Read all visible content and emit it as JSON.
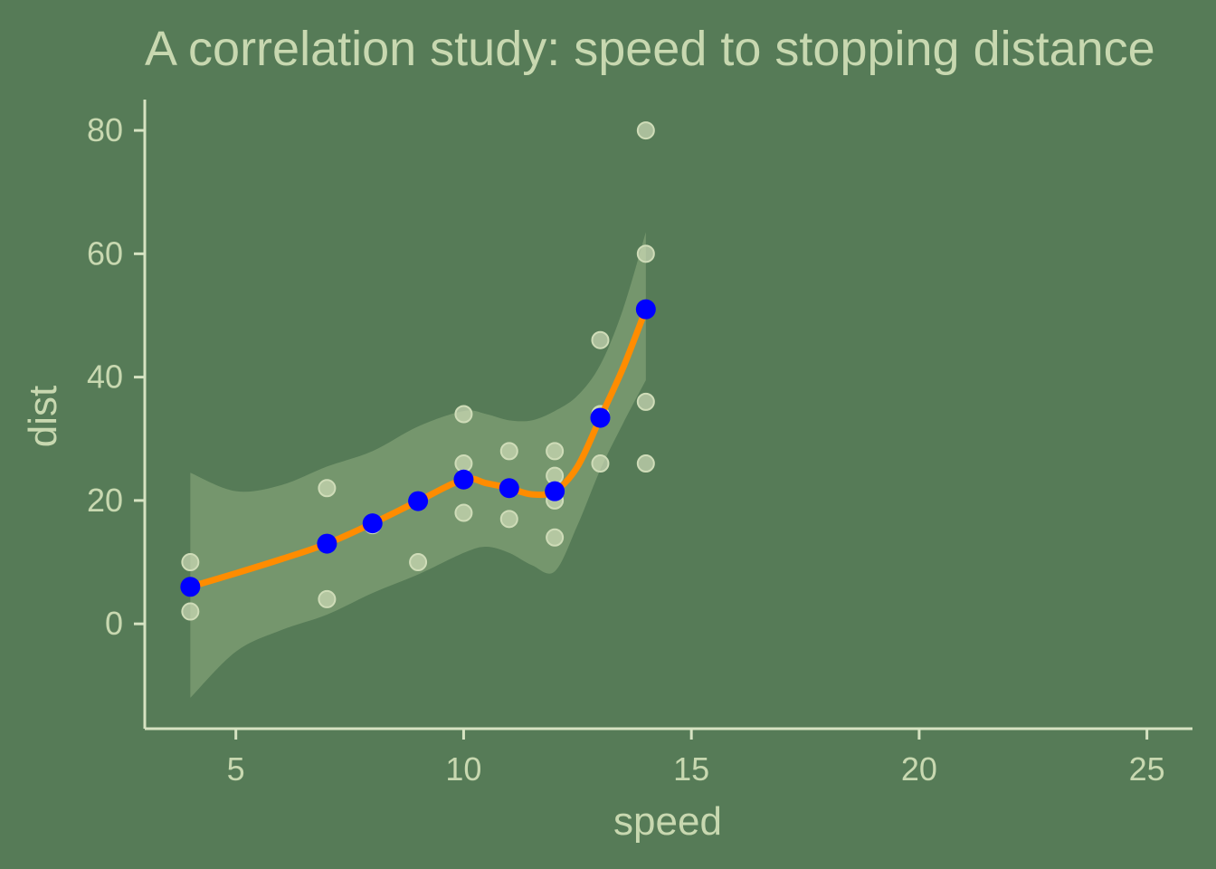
{
  "colors": {
    "background": "#567b57",
    "text": "#c8d8b0",
    "axis": "#d6e3c2",
    "raw_point": "#cfdcb8",
    "band": "#8fad80",
    "line": "#ff8c00",
    "mean_point": "#0000ff"
  },
  "chart_data": {
    "type": "scatter",
    "title": "A correlation study: speed to stopping distance",
    "xlabel": "speed",
    "ylabel": "dist",
    "xlim": [
      3,
      26
    ],
    "ylim": [
      -17,
      85
    ],
    "x_ticks": [
      5,
      10,
      15,
      20,
      25
    ],
    "y_ticks": [
      0,
      20,
      40,
      60,
      80
    ],
    "grid": false,
    "raw_points": [
      {
        "x": 4,
        "y": 2
      },
      {
        "x": 4,
        "y": 10
      },
      {
        "x": 7,
        "y": 4
      },
      {
        "x": 7,
        "y": 22
      },
      {
        "x": 8,
        "y": 16
      },
      {
        "x": 9,
        "y": 10
      },
      {
        "x": 10,
        "y": 18
      },
      {
        "x": 10,
        "y": 26
      },
      {
        "x": 10,
        "y": 34
      },
      {
        "x": 11,
        "y": 17
      },
      {
        "x": 11,
        "y": 28
      },
      {
        "x": 12,
        "y": 14
      },
      {
        "x": 12,
        "y": 20
      },
      {
        "x": 12,
        "y": 24
      },
      {
        "x": 12,
        "y": 28
      },
      {
        "x": 13,
        "y": 26
      },
      {
        "x": 13,
        "y": 34
      },
      {
        "x": 13,
        "y": 46
      },
      {
        "x": 14,
        "y": 26
      },
      {
        "x": 14,
        "y": 36
      },
      {
        "x": 14,
        "y": 60
      },
      {
        "x": 14,
        "y": 80
      }
    ],
    "mean_points": [
      {
        "x": 4,
        "y": 6
      },
      {
        "x": 7,
        "y": 13
      },
      {
        "x": 8,
        "y": 16.3
      },
      {
        "x": 9,
        "y": 19.9
      },
      {
        "x": 10,
        "y": 23.4
      },
      {
        "x": 11,
        "y": 22
      },
      {
        "x": 12,
        "y": 21.5
      },
      {
        "x": 13,
        "y": 33.4
      },
      {
        "x": 14,
        "y": 51
      }
    ],
    "smooth_line": [
      [
        4,
        6
      ],
      [
        5,
        8.2
      ],
      [
        6,
        10.5
      ],
      [
        7,
        13
      ],
      [
        8,
        16.3
      ],
      [
        9,
        19.9
      ],
      [
        10,
        23.4
      ],
      [
        10.5,
        22.8
      ],
      [
        11,
        22
      ],
      [
        11.5,
        21
      ],
      [
        12,
        21.5
      ],
      [
        12.5,
        25.5
      ],
      [
        13,
        33.4
      ],
      [
        13.5,
        41.5
      ],
      [
        14,
        51
      ]
    ],
    "band": {
      "upper": [
        [
          4,
          24.5
        ],
        [
          5,
          21.5
        ],
        [
          6,
          22.5
        ],
        [
          7,
          25.5
        ],
        [
          8,
          28
        ],
        [
          9,
          32
        ],
        [
          10,
          34.5
        ],
        [
          10.5,
          34
        ],
        [
          11,
          33
        ],
        [
          11.5,
          33
        ],
        [
          12,
          34.5
        ],
        [
          12.5,
          37
        ],
        [
          13,
          42
        ],
        [
          13.5,
          51
        ],
        [
          14,
          63.5
        ]
      ],
      "lower": [
        [
          4,
          -12
        ],
        [
          5,
          -4.5
        ],
        [
          6,
          -1
        ],
        [
          7,
          1.5
        ],
        [
          8,
          5
        ],
        [
          9,
          8
        ],
        [
          10,
          11.5
        ],
        [
          10.5,
          12.5
        ],
        [
          11,
          11.5
        ],
        [
          11.5,
          9.5
        ],
        [
          12,
          8.5
        ],
        [
          12.5,
          16
        ],
        [
          13,
          25
        ],
        [
          13.5,
          32.5
        ],
        [
          14,
          39.5
        ]
      ]
    }
  }
}
